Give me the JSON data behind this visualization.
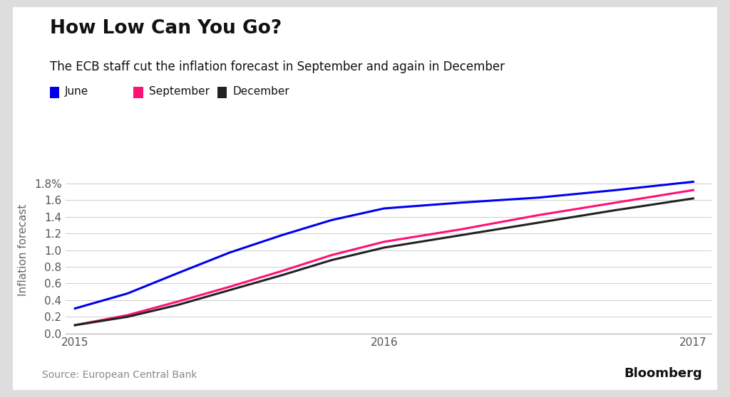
{
  "title": "How Low Can You Go?",
  "subtitle": "The ECB staff cut the inflation forecast in September and again in December",
  "ylabel": "Inflation forecast",
  "source": "Source: European Central Bank",
  "bloomberg": "Bloomberg",
  "legend_labels": [
    "June",
    "September",
    "December"
  ],
  "legend_colors": [
    "#0000ee",
    "#ff1177",
    "#222222"
  ],
  "background_color": "#ffffff",
  "outer_bg": "#dddddd",
  "x_ticks": [
    2015,
    2016,
    2017
  ],
  "ylim": [
    0.0,
    2.0
  ],
  "ytick_values": [
    0.0,
    0.2,
    0.4,
    0.6,
    0.8,
    1.0,
    1.2,
    1.4,
    1.6,
    1.8
  ],
  "june_x": [
    2015.0,
    2015.17,
    2015.33,
    2015.5,
    2015.67,
    2015.83,
    2016.0,
    2016.25,
    2016.5,
    2016.75,
    2017.0
  ],
  "june_y": [
    0.3,
    0.48,
    0.72,
    0.97,
    1.18,
    1.36,
    1.5,
    1.57,
    1.63,
    1.72,
    1.82
  ],
  "september_x": [
    2015.0,
    2015.17,
    2015.33,
    2015.5,
    2015.67,
    2015.83,
    2016.0,
    2016.25,
    2016.5,
    2016.75,
    2017.0
  ],
  "september_y": [
    0.1,
    0.22,
    0.38,
    0.56,
    0.75,
    0.94,
    1.1,
    1.25,
    1.42,
    1.57,
    1.72
  ],
  "december_x": [
    2015.0,
    2015.17,
    2015.33,
    2015.5,
    2015.67,
    2015.83,
    2016.0,
    2016.25,
    2016.5,
    2016.75,
    2017.0
  ],
  "december_y": [
    0.1,
    0.2,
    0.34,
    0.52,
    0.7,
    0.88,
    1.03,
    1.18,
    1.33,
    1.48,
    1.62
  ],
  "line_width": 2.2,
  "grid_color": "#cccccc",
  "title_fontsize": 19,
  "subtitle_fontsize": 12,
  "tick_fontsize": 11,
  "legend_fontsize": 11,
  "source_fontsize": 10,
  "bloomberg_fontsize": 13
}
